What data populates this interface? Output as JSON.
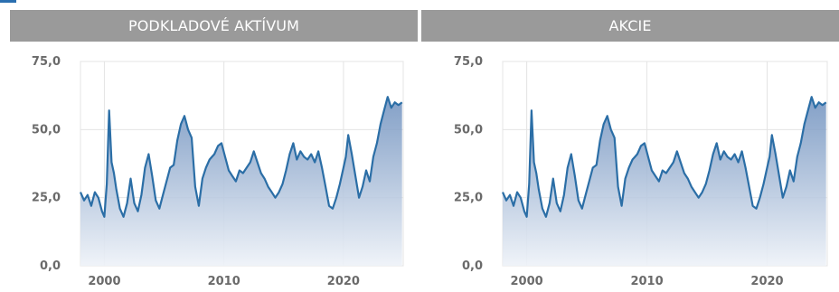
{
  "headers": {
    "left": "PODKLADOVÉ AKTÍVUM",
    "right": "AKCIE"
  },
  "colors": {
    "header_bg": "#9a9a9a",
    "line": "#2b6ea6",
    "area_top": "#6d8fbd",
    "area_bottom": "#eef2f8",
    "grid": "#e4e4e4",
    "tick_text": "#6a6a6a"
  },
  "chart_data": [
    {
      "type": "area",
      "title": "",
      "xlabel": "",
      "ylabel": "",
      "ylim": [
        0,
        75
      ],
      "xlim": [
        1998,
        2025
      ],
      "y_ticks": [
        "75,0",
        "50,0",
        "25,0",
        "0,0"
      ],
      "x_ticks": [
        "2000",
        "2010",
        "2020"
      ],
      "grid": true,
      "series": [
        {
          "x": [
            1998.0,
            1998.3,
            1998.6,
            1998.9,
            1999.2,
            1999.5,
            1999.8,
            2000.0,
            2000.2,
            2000.4,
            2000.6,
            2000.8,
            2001.0,
            2001.3,
            2001.6,
            2001.9,
            2002.2,
            2002.5,
            2002.8,
            2003.1,
            2003.4,
            2003.7,
            2004.0,
            2004.3,
            2004.6,
            2004.9,
            2005.2,
            2005.5,
            2005.8,
            2006.1,
            2006.4,
            2006.7,
            2007.0,
            2007.3,
            2007.6,
            2007.9,
            2008.2,
            2008.5,
            2008.8,
            2009.0,
            2009.2,
            2009.5,
            2009.8,
            2010.1,
            2010.4,
            2010.7,
            2011.0,
            2011.3,
            2011.6,
            2011.9,
            2012.2,
            2012.5,
            2012.8,
            2013.1,
            2013.4,
            2013.7,
            2014.0,
            2014.3,
            2014.6,
            2014.9,
            2015.2,
            2015.5,
            2015.8,
            2016.1,
            2016.4,
            2016.7,
            2017.0,
            2017.3,
            2017.6,
            2017.9,
            2018.2,
            2018.5,
            2018.8,
            2019.1,
            2019.4,
            2019.7,
            2020.0,
            2020.2,
            2020.4,
            2020.7,
            2021.0,
            2021.3,
            2021.6,
            2021.9,
            2022.2,
            2022.5,
            2022.8,
            2023.1,
            2023.4,
            2023.7,
            2024.0,
            2024.3,
            2024.6,
            2024.9
          ],
          "y": [
            27,
            24,
            26,
            22,
            27,
            25,
            20,
            18,
            30,
            57,
            38,
            34,
            28,
            21,
            18,
            23,
            32,
            23,
            20,
            26,
            36,
            41,
            33,
            24,
            21,
            26,
            31,
            36,
            37,
            46,
            52,
            55,
            50,
            47,
            29,
            22,
            32,
            36,
            39,
            40,
            41,
            44,
            45,
            40,
            35,
            33,
            31,
            35,
            34,
            36,
            38,
            42,
            38,
            34,
            32,
            29,
            27,
            25,
            27,
            30,
            35,
            41,
            45,
            39,
            42,
            40,
            39,
            41,
            38,
            42,
            36,
            29,
            22,
            21,
            25,
            30,
            36,
            40,
            48,
            41,
            33,
            25,
            29,
            35,
            31,
            40,
            45,
            52,
            57,
            62,
            58,
            60,
            59,
            60
          ]
        }
      ]
    },
    {
      "type": "area",
      "title": "",
      "xlabel": "",
      "ylabel": "",
      "ylim": [
        0,
        75
      ],
      "xlim": [
        1998,
        2025
      ],
      "y_ticks": [
        "75,0",
        "50,0",
        "25,0",
        "0,0"
      ],
      "x_ticks": [
        "2000",
        "2010",
        "2020"
      ],
      "grid": true,
      "series": [
        {
          "x": [
            1998.0,
            1998.3,
            1998.6,
            1998.9,
            1999.2,
            1999.5,
            1999.8,
            2000.0,
            2000.2,
            2000.4,
            2000.6,
            2000.8,
            2001.0,
            2001.3,
            2001.6,
            2001.9,
            2002.2,
            2002.5,
            2002.8,
            2003.1,
            2003.4,
            2003.7,
            2004.0,
            2004.3,
            2004.6,
            2004.9,
            2005.2,
            2005.5,
            2005.8,
            2006.1,
            2006.4,
            2006.7,
            2007.0,
            2007.3,
            2007.6,
            2007.9,
            2008.2,
            2008.5,
            2008.8,
            2009.0,
            2009.2,
            2009.5,
            2009.8,
            2010.1,
            2010.4,
            2010.7,
            2011.0,
            2011.3,
            2011.6,
            2011.9,
            2012.2,
            2012.5,
            2012.8,
            2013.1,
            2013.4,
            2013.7,
            2014.0,
            2014.3,
            2014.6,
            2014.9,
            2015.2,
            2015.5,
            2015.8,
            2016.1,
            2016.4,
            2016.7,
            2017.0,
            2017.3,
            2017.6,
            2017.9,
            2018.2,
            2018.5,
            2018.8,
            2019.1,
            2019.4,
            2019.7,
            2020.0,
            2020.2,
            2020.4,
            2020.7,
            2021.0,
            2021.3,
            2021.6,
            2021.9,
            2022.2,
            2022.5,
            2022.8,
            2023.1,
            2023.4,
            2023.7,
            2024.0,
            2024.3,
            2024.6,
            2024.9
          ],
          "y": [
            27,
            24,
            26,
            22,
            27,
            25,
            20,
            18,
            30,
            57,
            38,
            34,
            28,
            21,
            18,
            23,
            32,
            23,
            20,
            26,
            36,
            41,
            33,
            24,
            21,
            26,
            31,
            36,
            37,
            46,
            52,
            55,
            50,
            47,
            29,
            22,
            32,
            36,
            39,
            40,
            41,
            44,
            45,
            40,
            35,
            33,
            31,
            35,
            34,
            36,
            38,
            42,
            38,
            34,
            32,
            29,
            27,
            25,
            27,
            30,
            35,
            41,
            45,
            39,
            42,
            40,
            39,
            41,
            38,
            42,
            36,
            29,
            22,
            21,
            25,
            30,
            36,
            40,
            48,
            41,
            33,
            25,
            29,
            35,
            31,
            40,
            45,
            52,
            57,
            62,
            58,
            60,
            59,
            60
          ]
        }
      ]
    }
  ]
}
